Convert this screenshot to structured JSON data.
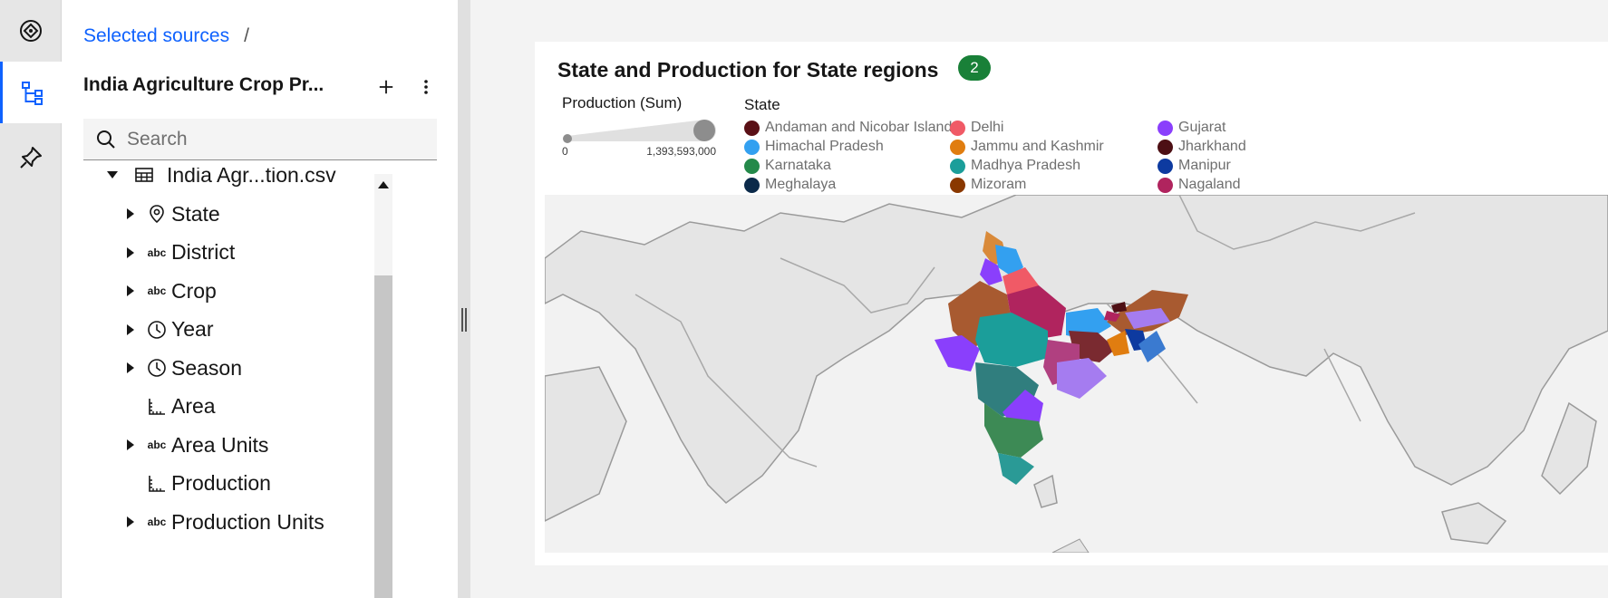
{
  "breadcrumb": {
    "link": "Selected sources",
    "separator": "/"
  },
  "source": {
    "title": "India Agriculture Crop Pr...",
    "add_icon": "plus-icon",
    "menu_icon": "overflow-menu-icon"
  },
  "search": {
    "placeholder": "Search",
    "value": ""
  },
  "tree": {
    "file": "India Agr...tion.csv",
    "fields": [
      {
        "label": "State",
        "icon": "location-icon",
        "glyph": "",
        "expandable": true
      },
      {
        "label": "District",
        "icon": "text-type-icon",
        "glyph": "abc",
        "expandable": true
      },
      {
        "label": "Crop",
        "icon": "text-type-icon",
        "glyph": "abc",
        "expandable": true
      },
      {
        "label": "Year",
        "icon": "clock-icon",
        "glyph": "",
        "expandable": true
      },
      {
        "label": "Season",
        "icon": "clock-icon",
        "glyph": "",
        "expandable": true
      },
      {
        "label": "Area",
        "icon": "measure-icon",
        "glyph": "",
        "expandable": false
      },
      {
        "label": "Area Units",
        "icon": "text-type-icon",
        "glyph": "abc",
        "expandable": true
      },
      {
        "label": "Production",
        "icon": "measure-icon",
        "glyph": "",
        "expandable": false
      },
      {
        "label": "Production Units",
        "icon": "text-type-icon",
        "glyph": "abc",
        "expandable": true
      }
    ]
  },
  "visualization": {
    "title": "State and Production for State regions",
    "badge": "2",
    "size_legend": {
      "title": "Production (Sum)",
      "min": "0",
      "max": "1,393,593,000"
    },
    "color_legend": {
      "title": "State",
      "items": [
        {
          "label": "Andaman and Nicobar Islands",
          "color": "#5a1016"
        },
        {
          "label": "Delhi",
          "color": "#f05a66"
        },
        {
          "label": "Gujarat",
          "color": "#8a3ffc"
        },
        {
          "label": "Himachal Pradesh",
          "color": "#33a0f0"
        },
        {
          "label": "Jammu and Kashmir",
          "color": "#e07d10"
        },
        {
          "label": "Jharkhand",
          "color": "#4d0f14"
        },
        {
          "label": "Karnataka",
          "color": "#24894a"
        },
        {
          "label": "Madhya Pradesh",
          "color": "#1b9e9a"
        },
        {
          "label": "Manipur",
          "color": "#0d3aa0"
        },
        {
          "label": "Meghalaya",
          "color": "#0b2a4a"
        },
        {
          "label": "Mizoram",
          "color": "#8a3800"
        },
        {
          "label": "Nagaland",
          "color": "#b0245e"
        }
      ]
    }
  },
  "rail": {
    "icons": [
      "home-icon",
      "data-tree-icon",
      "pin-icon"
    ],
    "active": "data-tree-icon"
  }
}
